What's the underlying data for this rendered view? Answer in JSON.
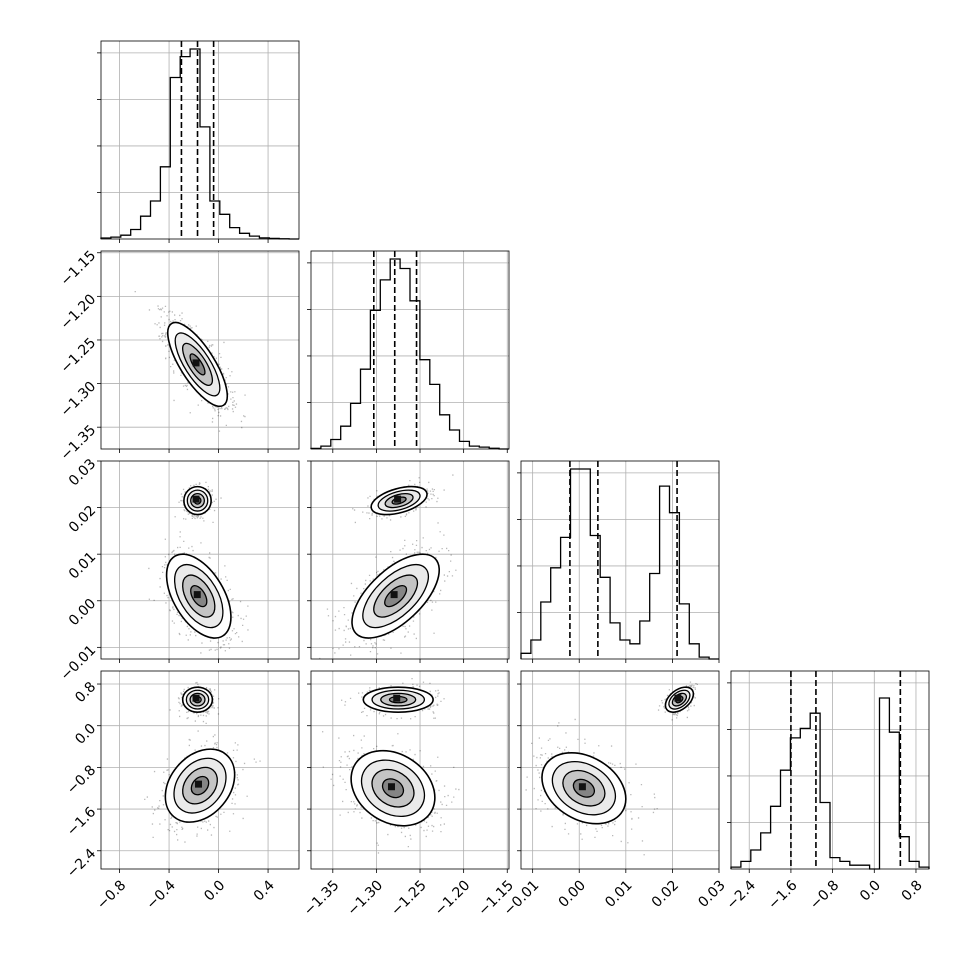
{
  "chart_data": {
    "type": "corner",
    "title": "",
    "grid": true,
    "color": "#000000",
    "params": [
      {
        "range": [
          -0.95,
          0.65
        ],
        "ticks": [
          -0.8,
          -0.4,
          0.0,
          0.4
        ],
        "tick_labels": [
          "−0.8",
          "−0.4",
          "0.0",
          "0.4"
        ],
        "quantiles": [
          -0.3,
          -0.17,
          -0.04
        ],
        "hist_y": [
          0.005,
          0.01,
          0.02,
          0.05,
          0.12,
          0.2,
          0.38,
          0.85,
          0.96,
          1.0,
          0.59,
          0.2,
          0.13,
          0.06,
          0.03,
          0.015,
          0.006,
          0.003,
          0.001,
          0.0
        ]
      },
      {
        "range": [
          -1.375,
          -1.148
        ],
        "ticks": [
          -1.35,
          -1.3,
          -1.25,
          -1.2,
          -1.15
        ],
        "tick_labels": [
          "−1.35",
          "−1.30",
          "−1.25",
          "−1.20",
          "−1.15"
        ],
        "quantiles": [
          -1.303,
          -1.279,
          -1.254
        ],
        "hist_y": [
          0.003,
          0.015,
          0.05,
          0.12,
          0.24,
          0.42,
          0.73,
          0.89,
          1.0,
          0.95,
          0.78,
          0.47,
          0.34,
          0.18,
          0.1,
          0.04,
          0.015,
          0.01,
          0.004,
          0.0
        ]
      },
      {
        "range": [
          -0.0125,
          0.03
        ],
        "ticks": [
          -0.01,
          0.0,
          0.01,
          0.02,
          0.03
        ],
        "tick_labels": [
          "−0.01",
          "0.00",
          "0.01",
          "0.02",
          "0.03"
        ],
        "quantiles": [
          -0.002,
          0.004,
          0.021
        ],
        "hist_y": [
          0.03,
          0.1,
          0.3,
          0.48,
          0.64,
          1.0,
          1.0,
          0.65,
          0.43,
          0.19,
          0.1,
          0.08,
          0.2,
          0.45,
          0.91,
          0.77,
          0.29,
          0.08,
          0.01,
          0.0
        ]
      },
      {
        "range": [
          -2.75,
          1.05
        ],
        "ticks": [
          -2.4,
          -1.6,
          -0.8,
          0.0,
          0.8
        ],
        "tick_labels": [
          "−2.4",
          "−1.6",
          "−0.8",
          "0.0",
          "0.8"
        ],
        "quantiles": [
          -1.6,
          -1.12,
          0.5
        ],
        "hist_y": [
          0.01,
          0.04,
          0.1,
          0.19,
          0.33,
          0.52,
          0.69,
          0.74,
          0.82,
          0.35,
          0.06,
          0.04,
          0.02,
          0.02,
          0.0,
          0.9,
          0.72,
          0.17,
          0.04,
          0.01
        ]
      }
    ],
    "pairs": [
      {
        "row": 1,
        "col": 0,
        "modes": [
          {
            "x": -0.17,
            "y": -1.278,
            "sx": 0.12,
            "sy": 0.024,
            "rho": -0.75,
            "w": 1.0
          }
        ]
      },
      {
        "row": 2,
        "col": 0,
        "modes": [
          {
            "x": -0.17,
            "y": 0.0215,
            "sx": 0.055,
            "sy": 0.0015,
            "rho": 0.0,
            "w": 0.35
          },
          {
            "x": -0.16,
            "y": 0.001,
            "sx": 0.13,
            "sy": 0.0045,
            "rho": -0.5,
            "w": 0.65
          }
        ]
      },
      {
        "row": 2,
        "col": 1,
        "modes": [
          {
            "x": -1.274,
            "y": 0.0215,
            "sx": 0.016,
            "sy": 0.0015,
            "rho": 0.45,
            "w": 0.35
          },
          {
            "x": -1.278,
            "y": 0.001,
            "sx": 0.025,
            "sy": 0.0045,
            "rho": 0.62,
            "w": 0.65
          }
        ]
      },
      {
        "row": 3,
        "col": 0,
        "modes": [
          {
            "x": -0.17,
            "y": 0.5,
            "sx": 0.06,
            "sy": 0.12,
            "rho": 0.0,
            "w": 0.35
          },
          {
            "x": -0.15,
            "y": -1.15,
            "sx": 0.14,
            "sy": 0.35,
            "rho": 0.3,
            "w": 0.65
          }
        ]
      },
      {
        "row": 3,
        "col": 1,
        "modes": [
          {
            "x": -1.275,
            "y": 0.5,
            "sx": 0.02,
            "sy": 0.12,
            "rho": 0.0,
            "w": 0.35
          },
          {
            "x": -1.281,
            "y": -1.2,
            "sx": 0.024,
            "sy": 0.36,
            "rho": -0.25,
            "w": 0.65
          }
        ]
      },
      {
        "row": 3,
        "col": 2,
        "modes": [
          {
            "x": 0.0215,
            "y": 0.5,
            "sx": 0.0015,
            "sy": 0.12,
            "rho": 0.45,
            "w": 0.35
          },
          {
            "x": 0.001,
            "y": -1.2,
            "sx": 0.0045,
            "sy": 0.34,
            "rho": -0.3,
            "w": 0.65
          }
        ]
      }
    ]
  }
}
